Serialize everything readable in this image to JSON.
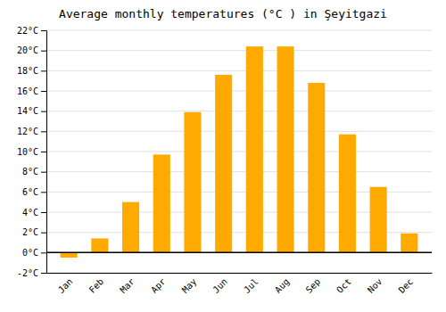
{
  "chart_data": {
    "type": "bar",
    "title": "Average monthly temperatures (°C ) in Şeyitgazi",
    "categories": [
      "Jan",
      "Feb",
      "Mar",
      "Apr",
      "May",
      "Jun",
      "Jul",
      "Aug",
      "Sep",
      "Oct",
      "Nov",
      "Dec"
    ],
    "values": [
      -0.5,
      1.4,
      5.0,
      9.7,
      13.9,
      17.6,
      20.4,
      20.4,
      16.8,
      11.7,
      6.5,
      1.9
    ],
    "color": "#FFAA00",
    "ylim": [
      -2,
      22
    ],
    "yticks": [
      {
        "value": -2,
        "label": "-2°C"
      },
      {
        "value": 0,
        "label": "0°C"
      },
      {
        "value": 2,
        "label": "2°C"
      },
      {
        "value": 4,
        "label": "4°C"
      },
      {
        "value": 6,
        "label": "6°C"
      },
      {
        "value": 8,
        "label": "8°C"
      },
      {
        "value": 10,
        "label": "10°C"
      },
      {
        "value": 12,
        "label": "12°C"
      },
      {
        "value": 14,
        "label": "14°C"
      },
      {
        "value": 16,
        "label": "16°C"
      },
      {
        "value": 18,
        "label": "18°C"
      },
      {
        "value": 20,
        "label": "20°C"
      },
      {
        "value": 22,
        "label": "22°C"
      }
    ],
    "grid": true
  }
}
